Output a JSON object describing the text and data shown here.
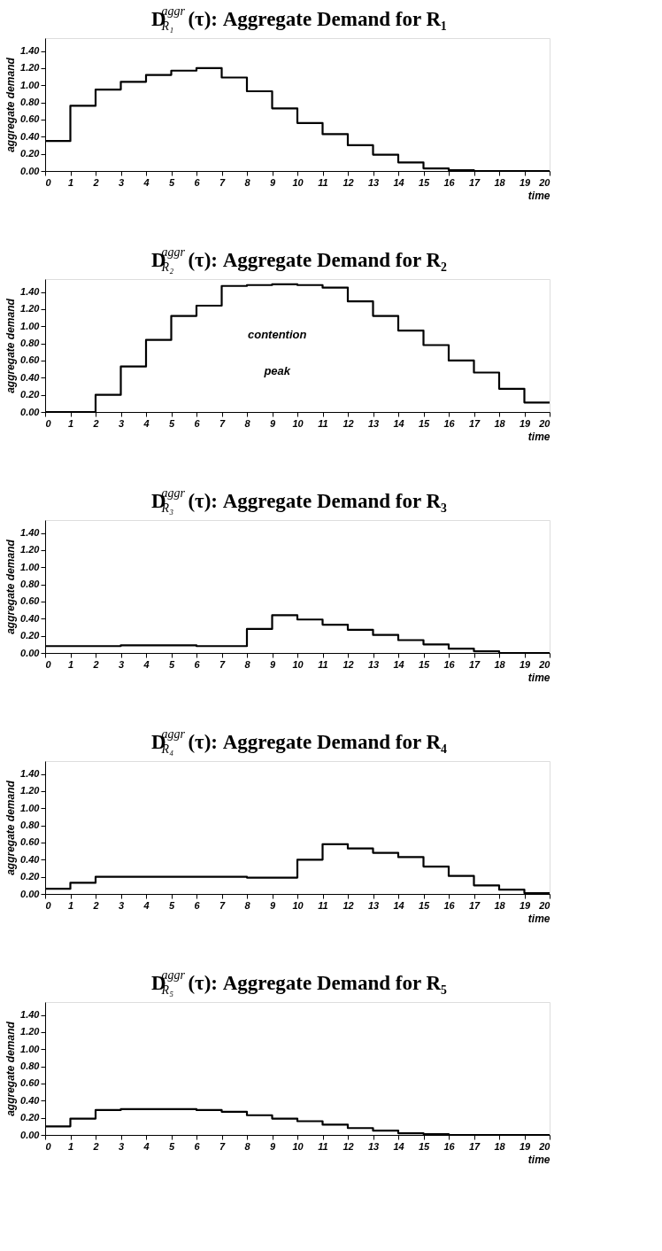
{
  "chart_data": [
    {
      "type": "step",
      "title": "D$^{aggr}$$_{R₁}$(τ): Aggregate Demand for R₁",
      "xlabel": "time",
      "ylabel": "aggregate demand",
      "x": [
        0,
        1,
        2,
        3,
        4,
        5,
        6,
        7,
        8,
        9,
        10,
        11,
        12,
        13,
        14,
        15,
        16,
        17,
        18,
        19,
        20
      ],
      "series": [
        {
          "color": "#000000",
          "values": [
            0.35,
            0.76,
            0.95,
            1.04,
            1.12,
            1.17,
            1.2,
            1.09,
            0.93,
            0.73,
            0.56,
            0.43,
            0.3,
            0.19,
            0.1,
            0.03,
            0.01,
            0.0,
            0.0,
            0.0,
            0.0
          ]
        }
      ],
      "xlim": [
        0,
        20
      ],
      "xticks": [
        0,
        1,
        2,
        3,
        4,
        5,
        6,
        7,
        8,
        9,
        10,
        11,
        12,
        13,
        14,
        15,
        16,
        17,
        18,
        19,
        20
      ],
      "ylim": [
        0,
        1.55
      ],
      "yticks": [
        {
          "value": 0,
          "label": "0.00"
        },
        {
          "value": 0.2,
          "label": "0.20"
        },
        {
          "value": 0.4,
          "label": "0.40"
        },
        {
          "value": 0.6,
          "label": "0.60"
        },
        {
          "value": 0.8,
          "label": "0.80"
        },
        {
          "value": 1.0,
          "label": "1.00"
        },
        {
          "value": 1.2,
          "label": "1.20"
        },
        {
          "value": 1.4,
          "label": "1.40"
        }
      ],
      "grid": false
    },
    {
      "type": "step",
      "title": "D$^{aggr}$$_{R₂}$(τ): Aggregate Demand for R₂",
      "xlabel": "time",
      "ylabel": "aggregate demand",
      "annotations": [
        "contention",
        "peak"
      ],
      "x": [
        0,
        1,
        2,
        3,
        4,
        5,
        6,
        7,
        8,
        9,
        10,
        11,
        12,
        13,
        14,
        15,
        16,
        17,
        18,
        19,
        20
      ],
      "series": [
        {
          "color": "#000000",
          "values": [
            0.0,
            0.0,
            0.2,
            0.53,
            0.84,
            1.12,
            1.24,
            1.47,
            1.48,
            1.49,
            1.48,
            1.45,
            1.29,
            1.12,
            0.95,
            0.78,
            0.6,
            0.46,
            0.27,
            0.11,
            0.11
          ]
        }
      ],
      "xlim": [
        0,
        20
      ],
      "xticks": [
        0,
        1,
        2,
        3,
        4,
        5,
        6,
        7,
        8,
        9,
        10,
        11,
        12,
        13,
        14,
        15,
        16,
        17,
        18,
        19,
        20
      ],
      "ylim": [
        0,
        1.55
      ],
      "yticks": [
        {
          "value": 0,
          "label": "0.00"
        },
        {
          "value": 0.2,
          "label": "0.20"
        },
        {
          "value": 0.4,
          "label": "0.40"
        },
        {
          "value": 0.6,
          "label": "0.60"
        },
        {
          "value": 0.8,
          "label": "0.80"
        },
        {
          "value": 1.0,
          "label": "1.00"
        },
        {
          "value": 1.2,
          "label": "1.20"
        },
        {
          "value": 1.4,
          "label": "1.40"
        }
      ],
      "grid": false
    },
    {
      "type": "step",
      "title": "D$^{aggr}$$_{R₃}$(τ): Aggregate Demand for R₃",
      "xlabel": "time",
      "ylabel": "aggregate demand",
      "x": [
        0,
        1,
        2,
        3,
        4,
        5,
        6,
        7,
        8,
        9,
        10,
        11,
        12,
        13,
        14,
        15,
        16,
        17,
        18,
        19,
        20
      ],
      "series": [
        {
          "color": "#000000",
          "values": [
            0.08,
            0.08,
            0.08,
            0.09,
            0.09,
            0.09,
            0.08,
            0.08,
            0.28,
            0.44,
            0.39,
            0.33,
            0.27,
            0.21,
            0.15,
            0.1,
            0.05,
            0.02,
            0.0,
            0.0,
            0.0
          ]
        }
      ],
      "xlim": [
        0,
        20
      ],
      "xticks": [
        0,
        1,
        2,
        3,
        4,
        5,
        6,
        7,
        8,
        9,
        10,
        11,
        12,
        13,
        14,
        15,
        16,
        17,
        18,
        19,
        20
      ],
      "ylim": [
        0,
        1.55
      ],
      "yticks": [
        {
          "value": 0,
          "label": "0.00"
        },
        {
          "value": 0.2,
          "label": "0.20"
        },
        {
          "value": 0.4,
          "label": "0.40"
        },
        {
          "value": 0.6,
          "label": "0.60"
        },
        {
          "value": 0.8,
          "label": "0.80"
        },
        {
          "value": 1.0,
          "label": "1.00"
        },
        {
          "value": 1.2,
          "label": "1.20"
        },
        {
          "value": 1.4,
          "label": "1.40"
        }
      ],
      "grid": false
    },
    {
      "type": "step",
      "title": "D$^{aggr}$$_{R₄}$(τ): Aggregate Demand for R₄",
      "xlabel": "time",
      "ylabel": "aggregate demand",
      "x": [
        0,
        1,
        2,
        3,
        4,
        5,
        6,
        7,
        8,
        9,
        10,
        11,
        12,
        13,
        14,
        15,
        16,
        17,
        18,
        19,
        20
      ],
      "series": [
        {
          "color": "#000000",
          "values": [
            0.06,
            0.13,
            0.2,
            0.2,
            0.2,
            0.2,
            0.2,
            0.2,
            0.19,
            0.19,
            0.4,
            0.58,
            0.53,
            0.48,
            0.43,
            0.32,
            0.21,
            0.1,
            0.05,
            0.01,
            0.01
          ]
        }
      ],
      "xlim": [
        0,
        20
      ],
      "xticks": [
        0,
        1,
        2,
        3,
        4,
        5,
        6,
        7,
        8,
        9,
        10,
        11,
        12,
        13,
        14,
        15,
        16,
        17,
        18,
        19,
        20
      ],
      "ylim": [
        0,
        1.55
      ],
      "yticks": [
        {
          "value": 0,
          "label": "0.00"
        },
        {
          "value": 0.2,
          "label": "0.20"
        },
        {
          "value": 0.4,
          "label": "0.40"
        },
        {
          "value": 0.6,
          "label": "0.60"
        },
        {
          "value": 0.8,
          "label": "0.80"
        },
        {
          "value": 1.0,
          "label": "1.00"
        },
        {
          "value": 1.2,
          "label": "1.20"
        },
        {
          "value": 1.4,
          "label": "1.40"
        }
      ],
      "grid": false
    },
    {
      "type": "step",
      "title": "D$^{aggr}$$_{R₅}$(τ): Aggregate Demand for R₅",
      "xlabel": "time",
      "ylabel": "aggregate demand",
      "x": [
        0,
        1,
        2,
        3,
        4,
        5,
        6,
        7,
        8,
        9,
        10,
        11,
        12,
        13,
        14,
        15,
        16,
        17,
        18,
        19,
        20
      ],
      "series": [
        {
          "color": "#000000",
          "values": [
            0.1,
            0.19,
            0.29,
            0.3,
            0.3,
            0.3,
            0.29,
            0.27,
            0.23,
            0.19,
            0.16,
            0.12,
            0.08,
            0.05,
            0.02,
            0.01,
            0.0,
            0.0,
            0.0,
            0.0,
            0.0
          ]
        }
      ],
      "xlim": [
        0,
        20
      ],
      "xticks": [
        0,
        1,
        2,
        3,
        4,
        5,
        6,
        7,
        8,
        9,
        10,
        11,
        12,
        13,
        14,
        15,
        16,
        17,
        18,
        19,
        20
      ],
      "ylim": [
        0,
        1.55
      ],
      "yticks": [
        {
          "value": 0,
          "label": "0.00"
        },
        {
          "value": 0.2,
          "label": "0.20"
        },
        {
          "value": 0.4,
          "label": "0.40"
        },
        {
          "value": 0.6,
          "label": "0.60"
        },
        {
          "value": 0.8,
          "label": "0.80"
        },
        {
          "value": 1.0,
          "label": "1.00"
        },
        {
          "value": 1.2,
          "label": "1.20"
        },
        {
          "value": 1.4,
          "label": "1.40"
        }
      ],
      "grid": false
    }
  ]
}
